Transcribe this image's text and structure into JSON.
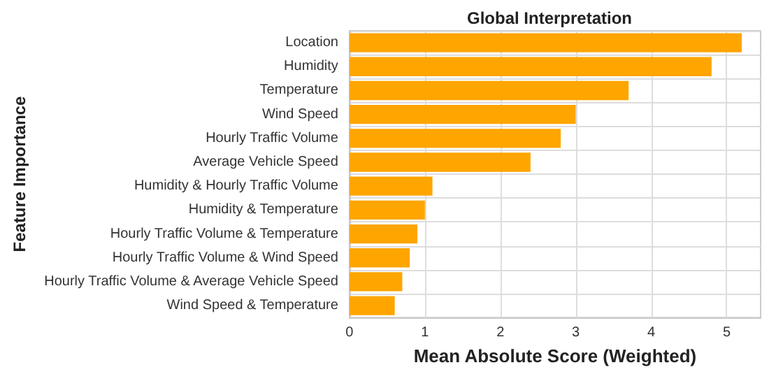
{
  "chart_data": {
    "type": "bar",
    "orientation": "horizontal",
    "title": "Global Interpretation",
    "xlabel": "Mean Absolute Score (Weighted)",
    "ylabel": "Feature Importance",
    "categories": [
      "Location",
      "Humidity",
      "Temperature",
      "Wind Speed",
      "Hourly Traffic Volume",
      "Average Vehicle Speed",
      "Humidity & Hourly Traffic Volume",
      "Humidity & Temperature",
      "Hourly Traffic Volume & Temperature",
      "Hourly Traffic Volume & Wind Speed",
      "Hourly Traffic Volume & Average Vehicle Speed",
      "Wind Speed & Temperature"
    ],
    "values": [
      5.2,
      4.8,
      3.7,
      3.0,
      2.8,
      2.4,
      1.1,
      1.0,
      0.9,
      0.8,
      0.7,
      0.6
    ],
    "color": "#ffa500",
    "xlim": [
      0,
      5.45
    ],
    "xticks": [
      0,
      1,
      2,
      3,
      4,
      5
    ],
    "grid": true
  }
}
